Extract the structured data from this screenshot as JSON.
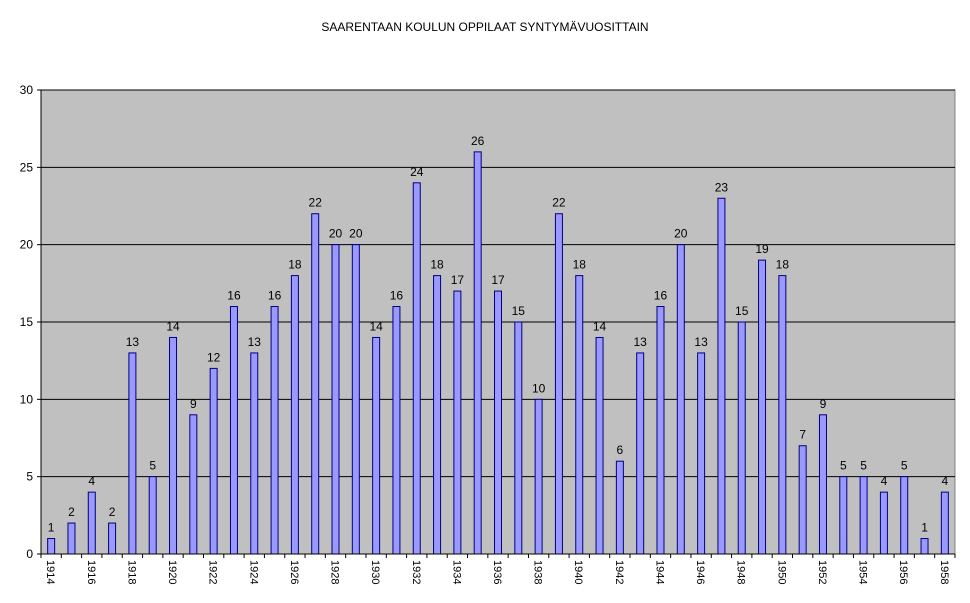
{
  "chart_data": {
    "type": "bar",
    "title": "SAARENTAAN KOULUN OPPILAAT SYNTYMÄVUOSITTAIN",
    "xlabel": "",
    "ylabel": "",
    "ylim": [
      0,
      30
    ],
    "yticks": [
      0,
      5,
      10,
      15,
      20,
      25,
      30
    ],
    "grid": true,
    "legend": "none",
    "colors": {
      "bar_fill": "#9999ff",
      "bar_stroke": "#000080",
      "plot_bg": "#c0c0c0",
      "grid": "#000000"
    },
    "categories": [
      "1914",
      "1915",
      "1916",
      "1917",
      "1918",
      "1919",
      "1920",
      "1921",
      "1922",
      "1923",
      "1924",
      "1925",
      "1926",
      "1927",
      "1928",
      "1929",
      "1930",
      "1931",
      "1932",
      "1933",
      "1934",
      "1935",
      "1936",
      "1937",
      "1938",
      "1939",
      "1940",
      "1941",
      "1942",
      "1943",
      "1944",
      "1945",
      "1946",
      "1947",
      "1948",
      "1949",
      "1950",
      "1951",
      "1952",
      "1953",
      "1954",
      "1955",
      "1956",
      "1957",
      "1958"
    ],
    "tick_labels": [
      "1914",
      "1916",
      "1918",
      "1920",
      "1922",
      "1924",
      "1926",
      "1928",
      "1930",
      "1932",
      "1934",
      "1936",
      "1938",
      "1940",
      "1942",
      "1944",
      "1946",
      "1948",
      "1950",
      "1952",
      "1954",
      "1956",
      "1958"
    ],
    "values": [
      1,
      2,
      4,
      2,
      13,
      5,
      14,
      9,
      12,
      16,
      13,
      16,
      18,
      22,
      20,
      20,
      14,
      16,
      24,
      18,
      17,
      26,
      17,
      15,
      10,
      22,
      18,
      14,
      6,
      13,
      16,
      20,
      13,
      23,
      15,
      19,
      18,
      7,
      9,
      5,
      5,
      4,
      5,
      1,
      4
    ]
  }
}
